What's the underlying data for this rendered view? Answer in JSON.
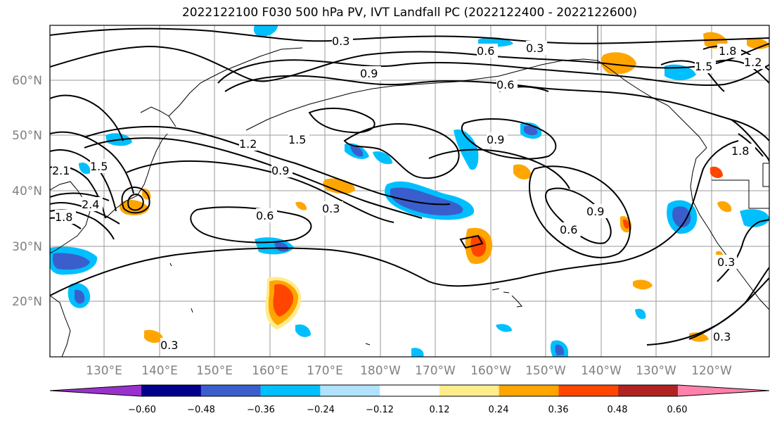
{
  "title": "2022122100 F030 500 hPa PV, IVT Landfall PC (2022122400 - 2022122600)",
  "lat_labels": [
    "60°N",
    "50°N",
    "40°N",
    "30°N",
    "20°N"
  ],
  "lon_labels": [
    "130°E",
    "140°E",
    "150°E",
    "160°E",
    "170°E",
    "180°W",
    "170°W",
    "160°W",
    "150°W",
    "140°W",
    "130°W",
    "120°W"
  ],
  "contour_labels": [
    "0.3",
    "0.6",
    "0.3",
    "0.9",
    "0.6",
    "1.8",
    "1.5",
    "1.2",
    "1.2",
    "1.5",
    "0.9",
    "0.3",
    "0.6",
    "0.9",
    "0.6",
    "0.9",
    "1.8",
    "0.3",
    "0.3",
    "2.1",
    "2.4",
    "1.8",
    "1.5",
    "0.3"
  ],
  "colorbar": {
    "ticks": [
      "−0.60",
      "−0.48",
      "−0.36",
      "−0.24",
      "−0.12",
      "0.12",
      "0.24",
      "0.36",
      "0.48",
      "0.60"
    ],
    "colors": [
      "#9932CC",
      "#00008B",
      "#3A5FCD",
      "#00BFFF",
      "#B0E2FF",
      "#FFFFFF",
      "#FFEC8B",
      "#FFA500",
      "#FF4500",
      "#B22222",
      "#FF82AB"
    ]
  }
}
